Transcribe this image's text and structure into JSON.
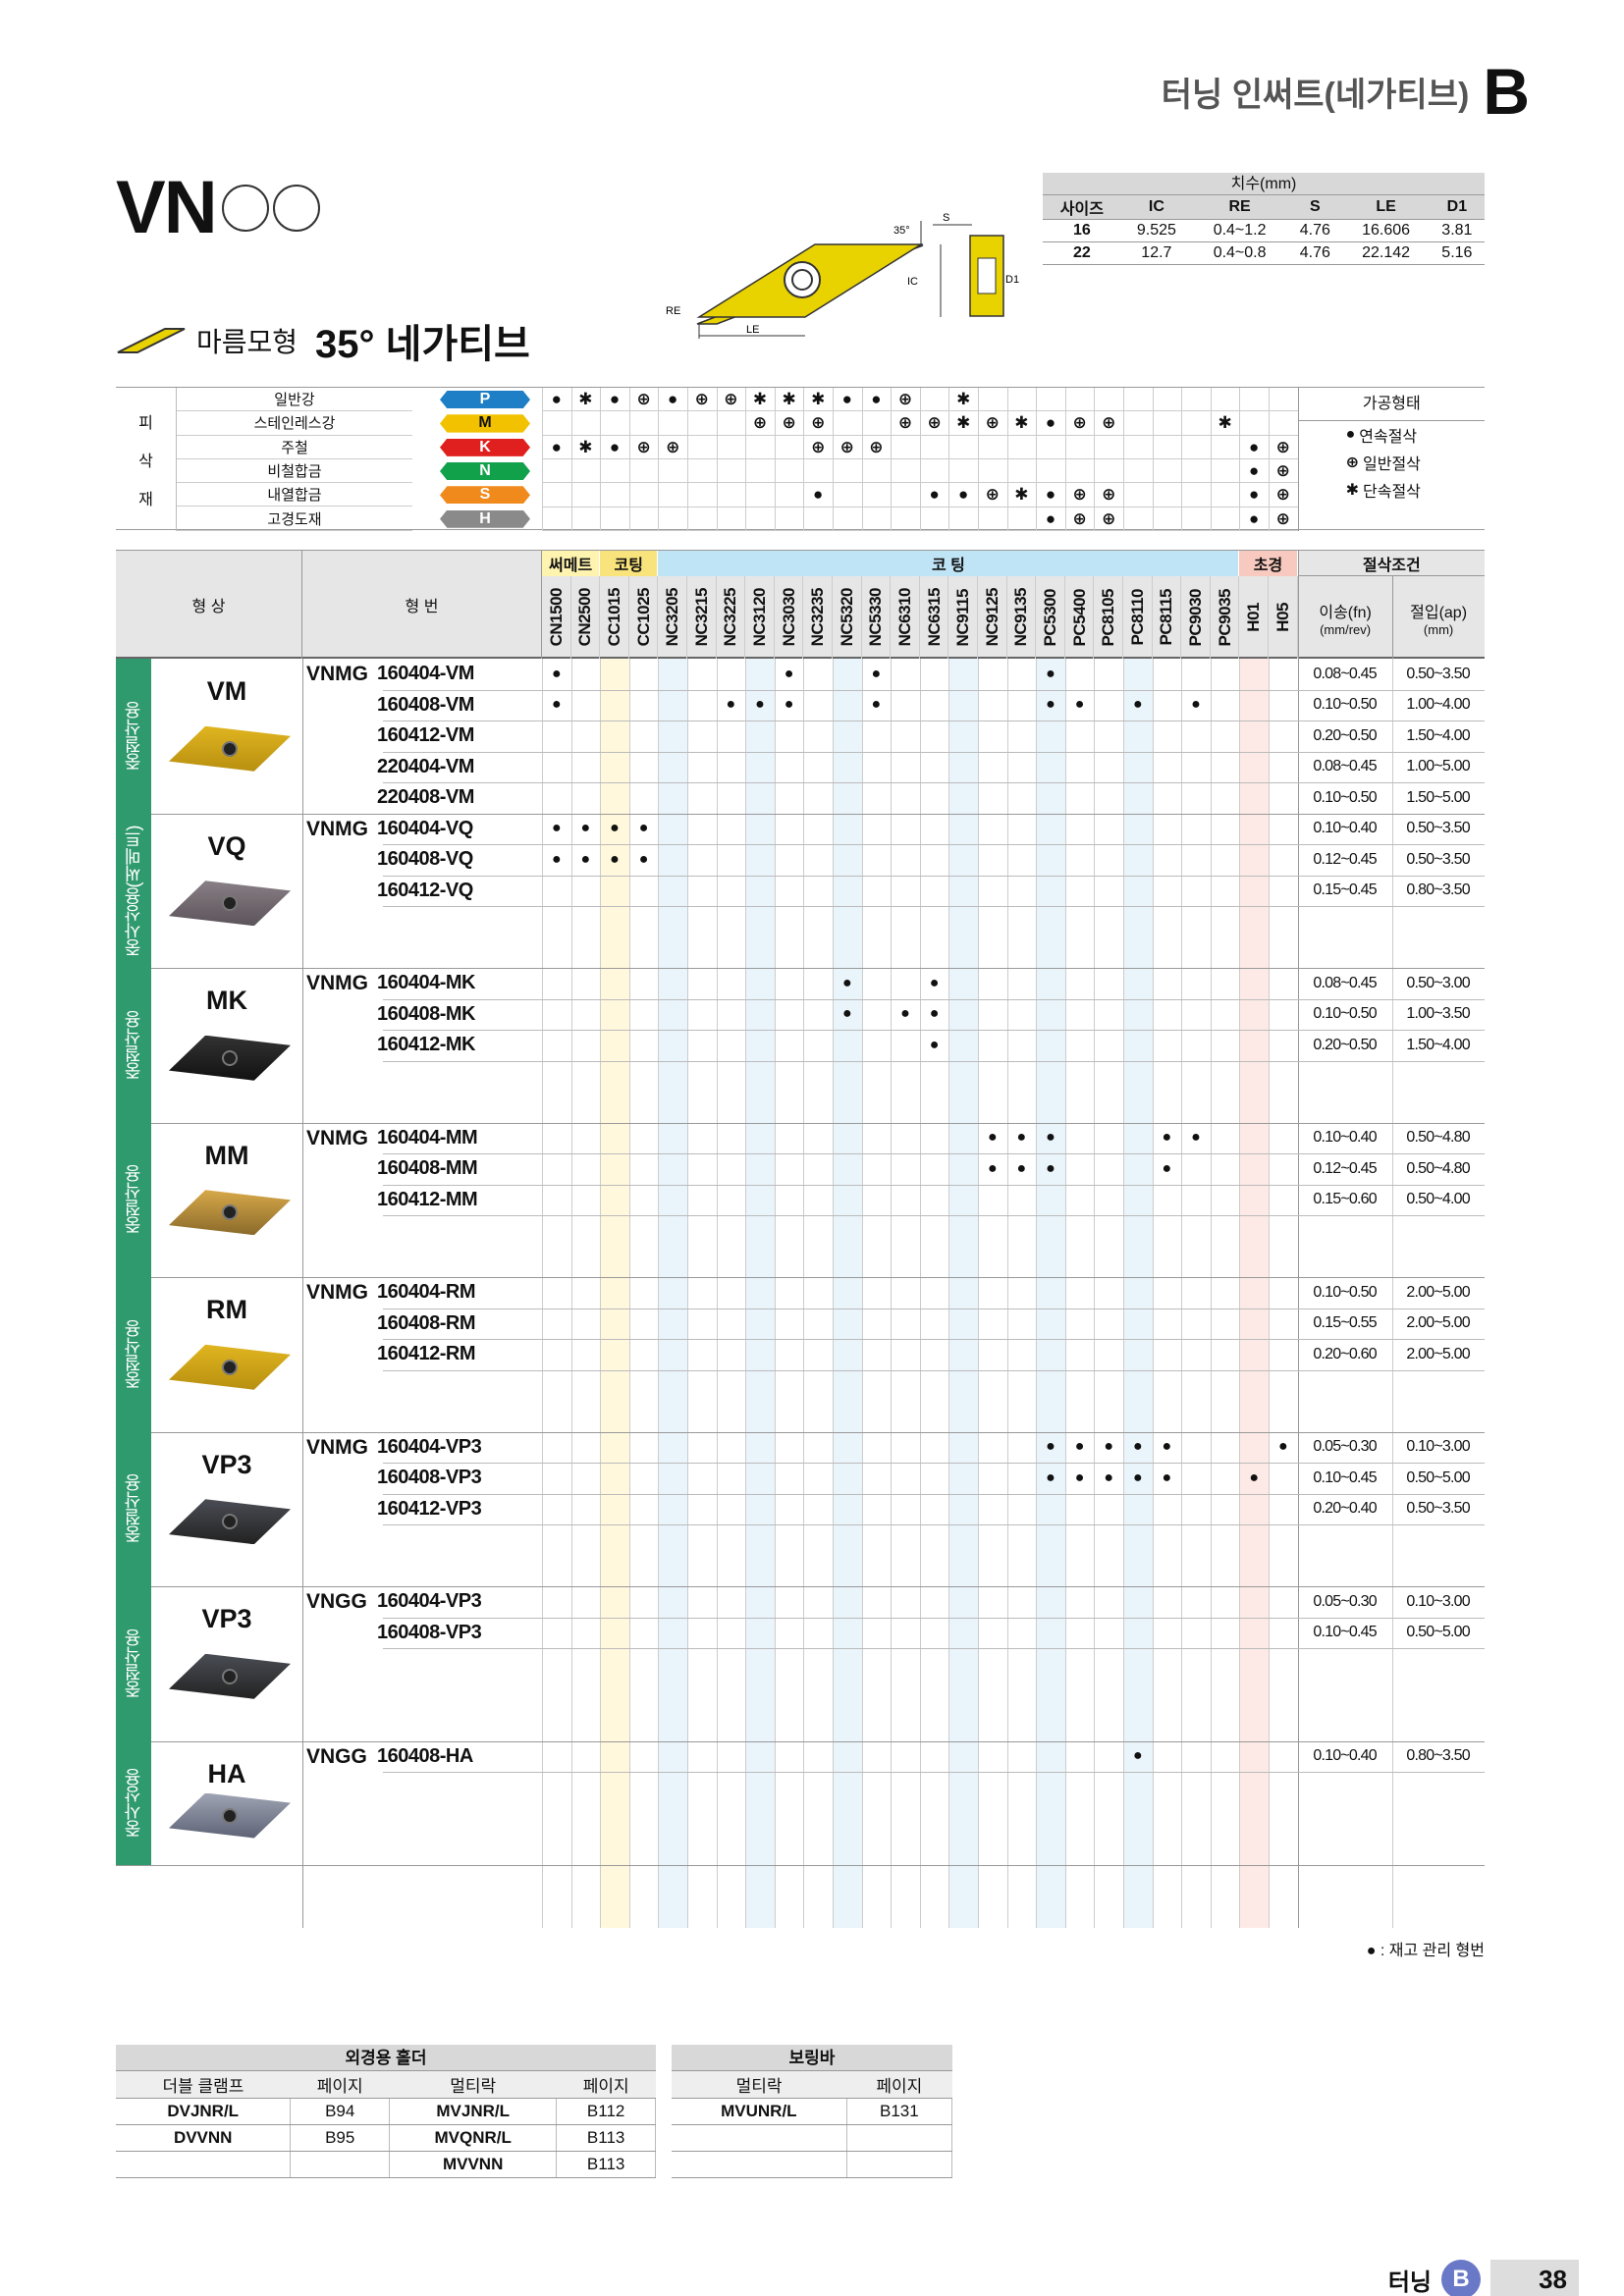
{
  "header": {
    "title": "터닝 인써트(네가티브)",
    "section_letter": "B"
  },
  "product": {
    "code": "VN",
    "shape_name": "마름모형",
    "angle_title": "35° 네가티브"
  },
  "dimensions": {
    "caption": "치수(mm)",
    "headers": [
      "사이즈",
      "IC",
      "RE",
      "S",
      "LE",
      "D1"
    ],
    "rows": [
      [
        "16",
        "9.525",
        "0.4~1.2",
        "4.76",
        "16.606",
        "3.81"
      ],
      [
        "22",
        "12.7",
        "0.4~0.8",
        "4.76",
        "22.142",
        "5.16"
      ]
    ]
  },
  "diagram": {
    "angle": "35°",
    "labels": [
      "S",
      "IC",
      "D1",
      "RE",
      "LE"
    ]
  },
  "materials": {
    "side_label": [
      "피",
      "삭",
      "재"
    ],
    "rows": [
      {
        "name": "일반강",
        "code": "P",
        "color": "#1f7fc6"
      },
      {
        "name": "스테인레스강",
        "code": "M",
        "color": "#f2c200"
      },
      {
        "name": "주철",
        "code": "K",
        "color": "#e0201e"
      },
      {
        "name": "비철합금",
        "code": "N",
        "color": "#12a14b"
      },
      {
        "name": "내열합금",
        "code": "S",
        "color": "#f08a1c"
      },
      {
        "name": "고경도재",
        "code": "H",
        "color": "#8a8a8a"
      }
    ],
    "process_title": "가공형태",
    "process_legend": [
      {
        "symbol": "●",
        "label": "연속절삭"
      },
      {
        "symbol": "⊕",
        "label": "일반절삭"
      },
      {
        "symbol": "✱",
        "label": "단속절삭"
      }
    ]
  },
  "table": {
    "head_shape": "형 상",
    "head_code": "형 번",
    "group_cermet": "써메트",
    "group_coating1": "코팅",
    "group_coating2": "코 팅",
    "group_cbn": "초경",
    "grades": [
      "CN1500",
      "CN2500",
      "CC1015",
      "CC1025",
      "NC3205",
      "NC3215",
      "NC3225",
      "NC3120",
      "NC3030",
      "NC3235",
      "NC5320",
      "NC5330",
      "NC6310",
      "NC6315",
      "NC9115",
      "NC9125",
      "NC9135",
      "PC5300",
      "PC5400",
      "PC8105",
      "PC8110",
      "PC8115",
      "PC9030",
      "PC9035",
      "H01",
      "H05"
    ],
    "cond_title": "절삭조건",
    "cond_feed": "이송(fn)",
    "cond_feed_unit": "(mm/rev)",
    "cond_depth": "절입(ap)",
    "cond_depth_unit": "(mm)"
  },
  "groups": [
    {
      "category": "중절삭용",
      "name": "VM",
      "prefix": "VNMG",
      "insert_color": "gold",
      "rows": [
        {
          "code": "160404-VM",
          "dots": [
            0,
            8,
            11,
            17
          ],
          "feed": "0.08~0.45",
          "depth": "0.50~3.50"
        },
        {
          "code": "160408-VM",
          "dots": [
            0,
            6,
            7,
            8,
            11,
            17,
            18,
            20,
            22
          ],
          "feed": "0.10~0.50",
          "depth": "1.00~4.00"
        },
        {
          "code": "160412-VM",
          "dots": [],
          "feed": "0.20~0.50",
          "depth": "1.50~4.00"
        },
        {
          "code": "220404-VM",
          "dots": [],
          "feed": "0.08~0.45",
          "depth": "1.00~5.00"
        },
        {
          "code": "220408-VM",
          "dots": [],
          "feed": "0.10~0.50",
          "depth": "1.50~5.00"
        }
      ]
    },
    {
      "category": "중사상용(써메트)",
      "name": "VQ",
      "prefix": "VNMG",
      "insert_color": "grey",
      "rows": [
        {
          "code": "160404-VQ",
          "dots": [
            0,
            1,
            2,
            3
          ],
          "feed": "0.10~0.40",
          "depth": "0.50~3.50"
        },
        {
          "code": "160408-VQ",
          "dots": [
            0,
            1,
            2,
            3
          ],
          "feed": "0.12~0.45",
          "depth": "0.50~3.50"
        },
        {
          "code": "160412-VQ",
          "dots": [],
          "feed": "0.15~0.45",
          "depth": "0.80~3.50"
        }
      ]
    },
    {
      "category": "중절삭용",
      "name": "MK",
      "prefix": "VNMG",
      "insert_color": "black",
      "rows": [
        {
          "code": "160404-MK",
          "dots": [
            10,
            13
          ],
          "feed": "0.08~0.45",
          "depth": "0.50~3.00"
        },
        {
          "code": "160408-MK",
          "dots": [
            10,
            12,
            13
          ],
          "feed": "0.10~0.50",
          "depth": "1.00~3.50"
        },
        {
          "code": "160412-MK",
          "dots": [
            13
          ],
          "feed": "0.20~0.50",
          "depth": "1.50~4.00"
        }
      ]
    },
    {
      "category": "중절삭용",
      "name": "MM",
      "prefix": "VNMG",
      "insert_color": "gold2",
      "rows": [
        {
          "code": "160404-MM",
          "dots": [
            15,
            16,
            17,
            21,
            22
          ],
          "feed": "0.10~0.40",
          "depth": "0.50~4.80"
        },
        {
          "code": "160408-MM",
          "dots": [
            15,
            16,
            17,
            21
          ],
          "feed": "0.12~0.45",
          "depth": "0.50~4.80"
        },
        {
          "code": "160412-MM",
          "dots": [],
          "feed": "0.15~0.60",
          "depth": "0.50~4.00"
        }
      ]
    },
    {
      "category": "중절삭용",
      "name": "RM",
      "prefix": "VNMG",
      "insert_color": "gold",
      "rows": [
        {
          "code": "160404-RM",
          "dots": [],
          "feed": "0.10~0.50",
          "depth": "2.00~5.00"
        },
        {
          "code": "160408-RM",
          "dots": [],
          "feed": "0.15~0.55",
          "depth": "2.00~5.00"
        },
        {
          "code": "160412-RM",
          "dots": [],
          "feed": "0.20~0.60",
          "depth": "2.00~5.00"
        }
      ]
    },
    {
      "category": "중절삭용",
      "name": "VP3",
      "prefix": "VNMG",
      "insert_color": "black2",
      "rows": [
        {
          "code": "160404-VP3",
          "dots": [
            17,
            18,
            19,
            20,
            21,
            25
          ],
          "feed": "0.05~0.30",
          "depth": "0.10~3.00"
        },
        {
          "code": "160408-VP3",
          "dots": [
            17,
            18,
            19,
            20,
            21,
            24
          ],
          "feed": "0.10~0.45",
          "depth": "0.50~5.00"
        },
        {
          "code": "160412-VP3",
          "dots": [],
          "feed": "0.20~0.40",
          "depth": "0.50~3.50"
        }
      ]
    },
    {
      "category": "중절삭용",
      "name": "VP3",
      "prefix": "VNGG",
      "insert_color": "black2",
      "rows": [
        {
          "code": "160404-VP3",
          "dots": [],
          "feed": "0.05~0.30",
          "depth": "0.10~3.00"
        },
        {
          "code": "160408-VP3",
          "dots": [],
          "feed": "0.10~0.45",
          "depth": "0.50~5.00"
        }
      ]
    },
    {
      "category": "중사상용",
      "name": "HA",
      "prefix": "VNGG",
      "insert_color": "silver",
      "rows": [
        {
          "code": "160408-HA",
          "dots": [
            20
          ],
          "feed": "0.10~0.40",
          "depth": "0.80~3.50"
        }
      ]
    }
  ],
  "footnote": "● : 재고 관리 형번",
  "holders": {
    "title_ext": "외경용 홀더",
    "title_bore": "보링바",
    "headers": [
      "더블 클램프",
      "페이지",
      "멀티락",
      "페이지"
    ],
    "bore_headers": [
      "멀티락",
      "페이지"
    ],
    "rows": [
      [
        "DVJNR/L",
        "B94",
        "MVJNR/L",
        "B112"
      ],
      [
        "DVVNN",
        "B95",
        "MVQNR/L",
        "B113"
      ],
      [
        "",
        "",
        "MVVNN",
        "B113"
      ]
    ],
    "bore_rows": [
      [
        "MVUNR/L",
        "B131"
      ],
      [
        "",
        ""
      ],
      [
        "",
        ""
      ]
    ]
  },
  "footer": {
    "label": "터닝",
    "letter": "B",
    "page": "38"
  }
}
